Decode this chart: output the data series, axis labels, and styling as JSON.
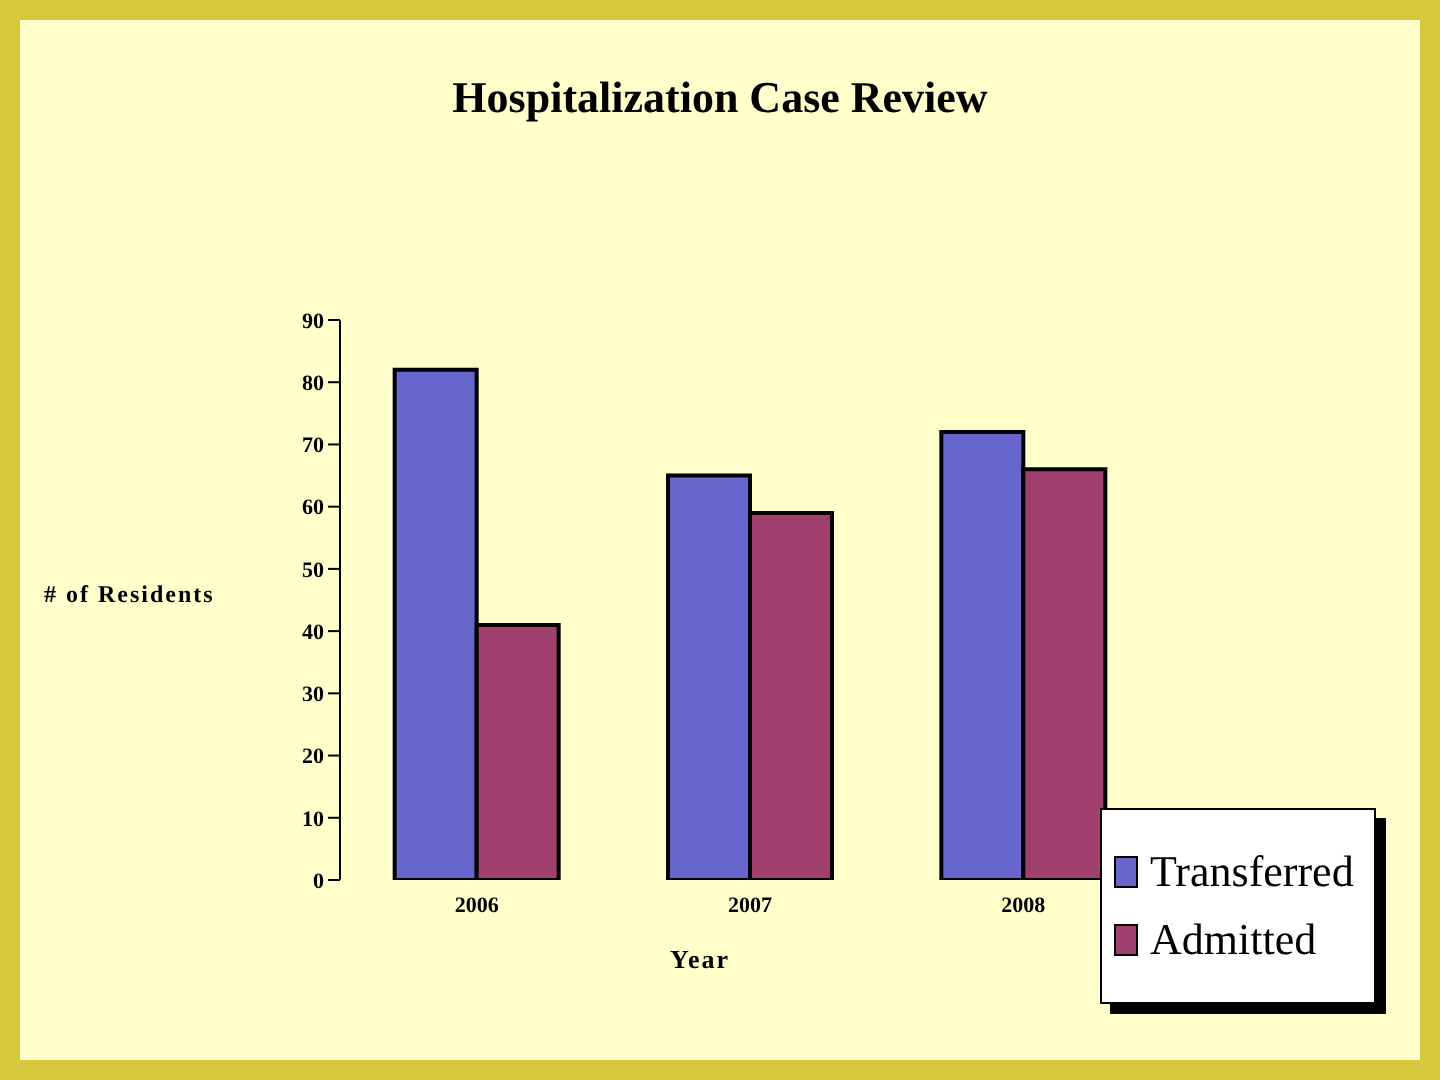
{
  "chart_data": {
    "type": "bar",
    "title": "Hospitalization Case Review",
    "xlabel": "Year",
    "ylabel": "# of Residents",
    "categories": [
      "2006",
      "2007",
      "2008"
    ],
    "series": [
      {
        "name": "Transferred",
        "color": "#6666cc",
        "values": [
          82,
          65,
          72
        ]
      },
      {
        "name": "Admitted",
        "color": "#a0406e",
        "values": [
          41,
          59,
          66
        ]
      }
    ],
    "ylim": [
      0,
      90
    ],
    "yticks": [
      0,
      10,
      20,
      30,
      40,
      50,
      60,
      70,
      80,
      90
    ],
    "grid": false,
    "legend": "bottom right"
  }
}
